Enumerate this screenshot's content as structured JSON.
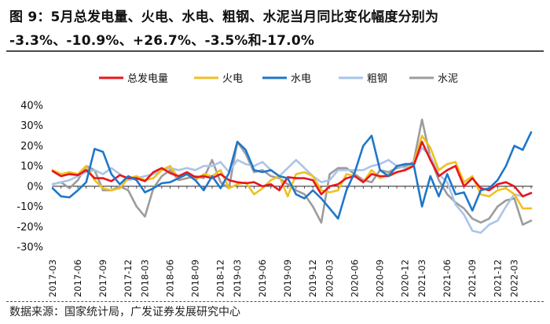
{
  "header": {
    "title_line1": "图 9：5月总发电量、火电、水电、粗钢、水泥当月同比变化幅度分别为",
    "title_line2": "-3.3%、-10.9%、+26.7%、-3.5%和-17.0%"
  },
  "footer": {
    "source": "数据来源：国家统计局，广发证券发展研究中心"
  },
  "chart_data": {
    "type": "line",
    "title": "5月总发电量、火电、水电、粗钢、水泥当月同比变化幅度",
    "ylabel": "",
    "xlabel": "",
    "ylim": [
      -30,
      40
    ],
    "y_ticks": [
      "40%",
      "30%",
      "20%",
      "10%",
      "0%",
      "-10%",
      "-20%",
      "-30%"
    ],
    "y_tick_values": [
      40,
      30,
      20,
      10,
      0,
      -10,
      -20,
      -30
    ],
    "x": [
      "2017-03",
      "2017-04",
      "2017-05",
      "2017-06",
      "2017-07",
      "2017-08",
      "2017-09",
      "2017-10",
      "2017-11",
      "2017-12",
      "2018-01",
      "2018-03",
      "2018-04",
      "2018-05",
      "2018-06",
      "2018-07",
      "2018-08",
      "2018-09",
      "2018-10",
      "2018-11",
      "2018-12",
      "2019-01",
      "2019-03",
      "2019-04",
      "2019-05",
      "2019-06",
      "2019-07",
      "2019-08",
      "2019-09",
      "2019-10",
      "2019-11",
      "2019-12",
      "2020-01",
      "2020-03",
      "2020-04",
      "2020-05",
      "2020-06",
      "2020-07",
      "2020-08",
      "2020-09",
      "2020-10",
      "2020-11",
      "2020-12",
      "2021-01",
      "2021-03",
      "2021-04",
      "2021-05",
      "2021-06",
      "2021-07",
      "2021-08",
      "2021-09",
      "2021-10",
      "2021-11",
      "2021-12",
      "2022-01",
      "2022-03",
      "2022-04",
      "2022-05"
    ],
    "x_tick_labels": [
      "2017-03",
      "2017-06",
      "2017-09",
      "2017-12",
      "2018-03",
      "2018-06",
      "2018-09",
      "2018-12",
      "2019-03",
      "2019-06",
      "2019-09",
      "2019-12",
      "2020-03",
      "2020-06",
      "2020-09",
      "2020-12",
      "2021-03",
      "2021-06",
      "2021-09",
      "2021-12",
      "2022-03"
    ],
    "legend": [
      "总发电量",
      "火电",
      "水电",
      "粗钢",
      "水泥"
    ],
    "legend_position": "top",
    "series": [
      {
        "name": "总发电量",
        "color": "#e8161b",
        "values": [
          7.5,
          5,
          6,
          5.5,
          8,
          4,
          4,
          2.5,
          5.5,
          4,
          4,
          2.5,
          7,
          9,
          6.5,
          5,
          7,
          4.5,
          5,
          4,
          6,
          3,
          2,
          1.5,
          2,
          0,
          1,
          -2,
          4.5,
          4,
          4,
          3,
          -4,
          0,
          1,
          4,
          5,
          2,
          6,
          5,
          5,
          7,
          8,
          10,
          22,
          13,
          5,
          8,
          10,
          0,
          4,
          -1,
          -2,
          1,
          2,
          0,
          -5,
          -3.3
        ]
      },
      {
        "name": "火电",
        "color": "#f0c020",
        "values": [
          8,
          6,
          7,
          6,
          10,
          3,
          -1,
          -2,
          -1,
          4,
          5,
          3,
          4,
          8,
          10,
          4,
          6,
          3,
          6,
          5,
          8,
          -1,
          1,
          2,
          -4,
          -1,
          3,
          5,
          -5,
          6,
          7,
          5,
          -2,
          -3,
          -2,
          6,
          5,
          2,
          8,
          4,
          6,
          7,
          8,
          11,
          25,
          19,
          8,
          11,
          12,
          2,
          5,
          -4,
          -5,
          -2,
          -1,
          -4,
          -11,
          -10.9
        ]
      },
      {
        "name": "水电",
        "color": "#1f77c9",
        "values": [
          -1,
          -5,
          -5.5,
          -2,
          2,
          18.5,
          17,
          6,
          1,
          5,
          3,
          -3,
          -1,
          1.5,
          2,
          4,
          6,
          3,
          -2,
          5,
          -1,
          6.5,
          22,
          18,
          8,
          7,
          8,
          5,
          4,
          -4,
          -6,
          -2,
          -6,
          -11,
          -16,
          -2,
          7,
          20,
          25,
          8,
          5,
          10,
          11,
          11,
          -10,
          5,
          -5,
          6,
          -4,
          -3,
          -12,
          -2,
          -1,
          3,
          10,
          20,
          18,
          26.7
        ]
      },
      {
        "name": "粗钢",
        "color": "#aac4e8",
        "values": [
          1,
          2,
          3,
          5,
          7,
          8,
          6,
          9,
          6,
          3,
          4,
          5,
          6,
          8,
          9,
          8,
          9,
          8,
          10,
          10,
          12,
          7,
          13,
          11,
          10,
          12,
          8,
          5,
          9,
          13,
          9,
          5,
          2,
          3,
          8,
          8,
          8,
          8,
          10,
          11,
          13,
          10,
          9,
          11,
          19,
          15,
          6,
          2,
          -9,
          -14,
          -22,
          -23,
          -19,
          -17,
          -10,
          -4,
          -5,
          -3.5
        ]
      },
      {
        "name": "水泥",
        "color": "#9c9c9c",
        "values": [
          1,
          2,
          -1,
          3,
          10,
          8,
          -2,
          -2,
          0,
          -2,
          -10,
          -15,
          -1,
          5,
          8,
          3,
          4,
          5,
          4,
          13,
          2,
          -1,
          22,
          16,
          7,
          8,
          5,
          4,
          1,
          -2,
          -4,
          -10,
          -18,
          6,
          9,
          9,
          6,
          3,
          2,
          8,
          7,
          9,
          10,
          12,
          33,
          14,
          3,
          -4,
          -8,
          -11,
          -16,
          -18,
          -16,
          -10,
          -7,
          -6,
          -19,
          -17.0
        ]
      }
    ]
  }
}
